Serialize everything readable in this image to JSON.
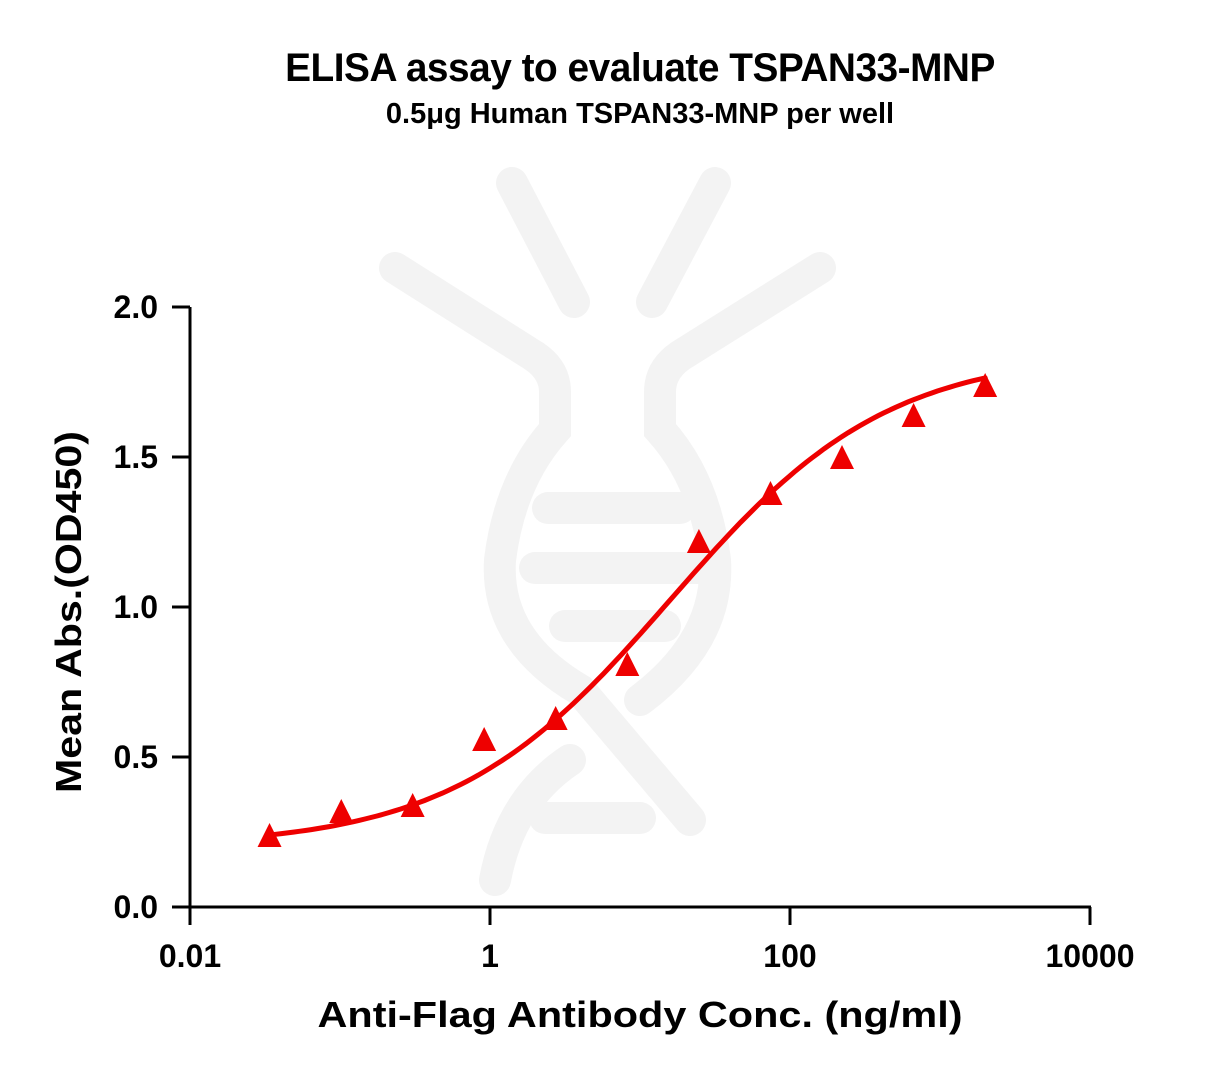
{
  "chart_data": {
    "type": "scatter",
    "title": "ELISA assay to evaluate TSPAN33-MNP",
    "subtitle": "0.5μg Human TSPAN33-MNP per well",
    "xlabel": "Anti-Flag Antibody Conc. (ng/ml)",
    "ylabel": "Mean Abs.(OD450)",
    "xscale": "log",
    "xlim": [
      0.01,
      10000
    ],
    "ylim": [
      0,
      2.0
    ],
    "xticks": [
      {
        "value": 0.01,
        "label": "0.01"
      },
      {
        "value": 1,
        "label": "1"
      },
      {
        "value": 100,
        "label": "100"
      },
      {
        "value": 10000,
        "label": "10000"
      }
    ],
    "yticks": [
      {
        "value": 0.0,
        "label": "0.0"
      },
      {
        "value": 0.5,
        "label": "0.5"
      },
      {
        "value": 1.0,
        "label": "1.0"
      },
      {
        "value": 1.5,
        "label": "1.5"
      },
      {
        "value": 2.0,
        "label": "2.0"
      }
    ],
    "grid": false,
    "legend": null,
    "series": [
      {
        "name": "TSPAN33-MNP",
        "marker": "triangle",
        "color": "#ee0000",
        "x": [
          0.0339,
          0.102,
          0.305,
          0.914,
          2.74,
          8.23,
          24.7,
          74.1,
          222.2,
          666.7,
          2000
        ],
        "y": [
          0.24,
          0.32,
          0.34,
          0.56,
          0.63,
          0.81,
          1.22,
          1.38,
          1.5,
          1.64,
          1.74
        ],
        "fit": {
          "model": "4PL",
          "bottom": 0.2,
          "top": 1.85,
          "ec50": 16,
          "hill": 0.6
        }
      }
    ]
  },
  "colors": {
    "series": "#ee0000",
    "axis": "#000000",
    "watermark": "#f3f3f3"
  }
}
